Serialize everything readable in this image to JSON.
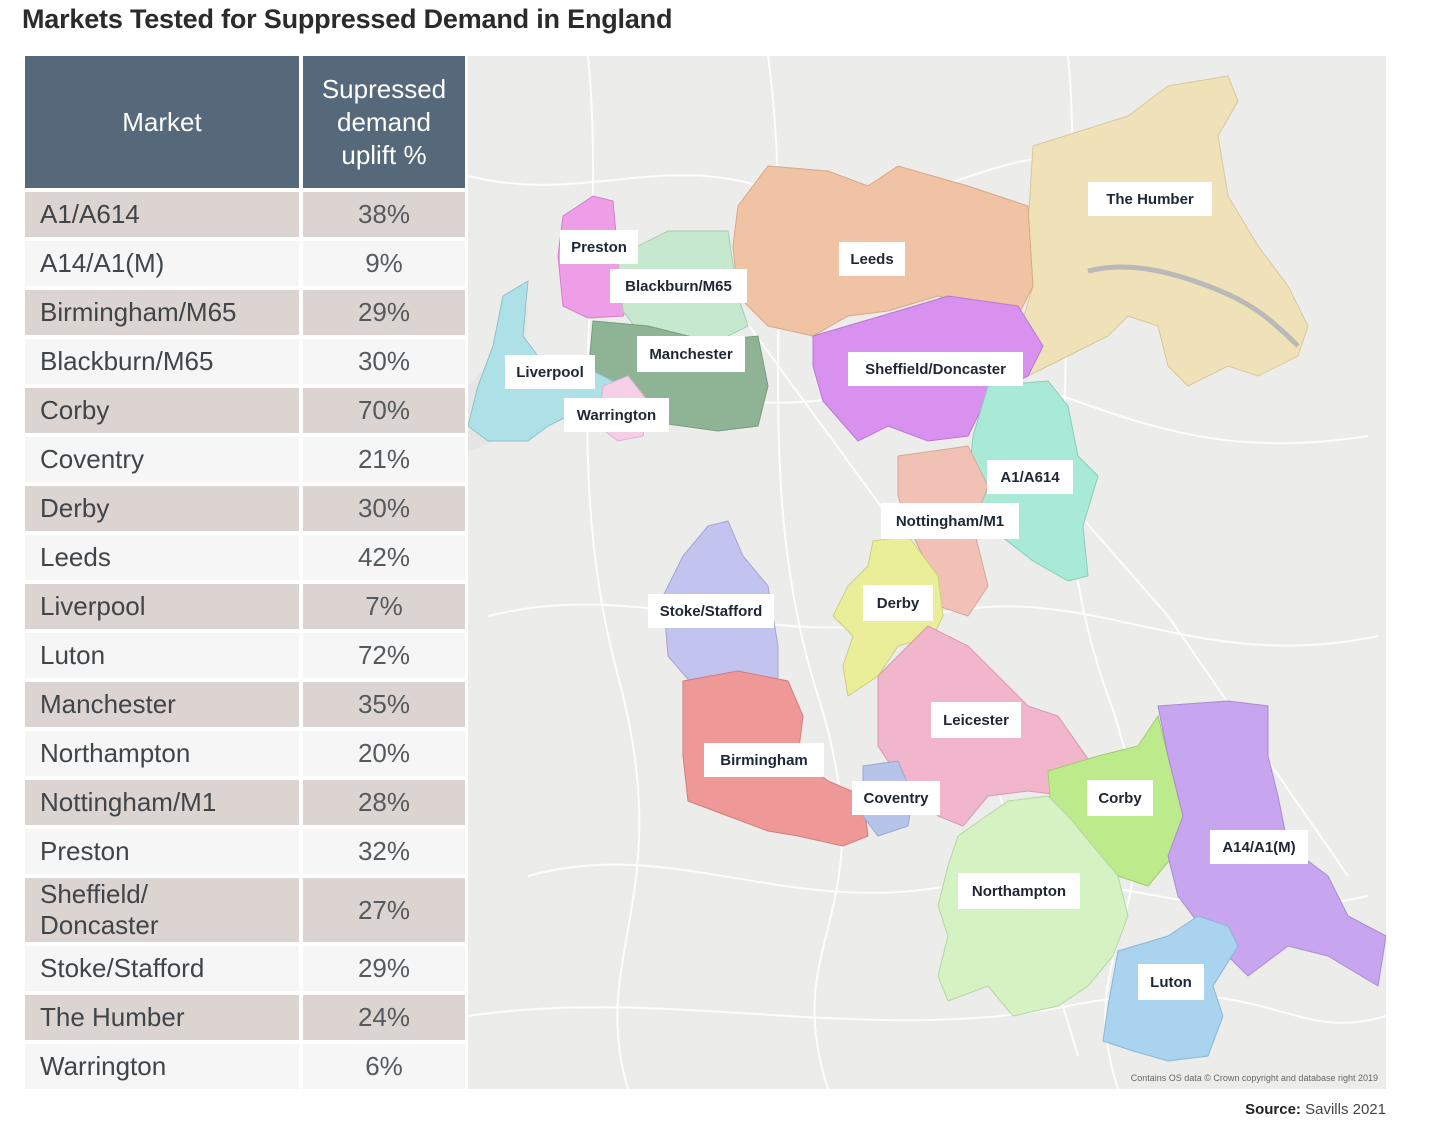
{
  "title": "Markets Tested for Suppressed Demand in England",
  "table": {
    "header_market": "Market",
    "header_uplift": "Supressed\ndemand\nuplift %",
    "rows": [
      {
        "market": "A1/A614",
        "uplift": "38%"
      },
      {
        "market": "A14/A1(M)",
        "uplift": "9%"
      },
      {
        "market": "Birmingham/M65",
        "uplift": "29%"
      },
      {
        "market": "Blackburn/M65",
        "uplift": "30%"
      },
      {
        "market": "Corby",
        "uplift": "70%"
      },
      {
        "market": "Coventry",
        "uplift": "21%"
      },
      {
        "market": "Derby",
        "uplift": "30%"
      },
      {
        "market": "Leeds",
        "uplift": "42%"
      },
      {
        "market": "Liverpool",
        "uplift": "7%"
      },
      {
        "market": "Luton",
        "uplift": "72%"
      },
      {
        "market": "Manchester",
        "uplift": "35%"
      },
      {
        "market": "Northampton",
        "uplift": "20%"
      },
      {
        "market": "Nottingham/M1",
        "uplift": "28%"
      },
      {
        "market": "Preston",
        "uplift": "32%"
      },
      {
        "market": "Sheffield/\nDoncaster",
        "uplift": "27%"
      },
      {
        "market": "Stoke/Stafford",
        "uplift": "29%"
      },
      {
        "market": "The Humber",
        "uplift": "24%"
      },
      {
        "market": "Warrington",
        "uplift": "6%"
      }
    ]
  },
  "map": {
    "labels": {
      "the_humber": "The Humber",
      "preston": "Preston",
      "leeds": "Leeds",
      "blackburn": "Blackburn/M65",
      "manchester": "Manchester",
      "liverpool": "Liverpool",
      "sheffield": "Sheffield/Doncaster",
      "warrington": "Warrington",
      "a1_a614": "A1/A614",
      "nottingham": "Nottingham/M1",
      "stoke": "Stoke/Stafford",
      "derby": "Derby",
      "leicester": "Leicester",
      "birmingham": "Birmingham",
      "coventry": "Coventry",
      "corby": "Corby",
      "a14": "A14/A1(M)",
      "northampton": "Northampton",
      "luton": "Luton"
    },
    "region_colors": {
      "humber": "#efe2b8",
      "leeds": "#efc3a3",
      "preston": "#ee9ee6",
      "blackburn": "#c6e8cf",
      "manchester": "#8fb495",
      "liverpool": "#aee0e8",
      "warrington": "#f5cfe5",
      "sheffield": "#d891ee",
      "a1_a614": "#a9ead6",
      "nottingham": "#f0c1b4",
      "stoke": "#c3c3ef",
      "derby": "#eaee98",
      "leicester": "#f2b6cc",
      "birmingham": "#ee9898",
      "coventry": "#b7c4ea",
      "corby": "#bdea8a",
      "a14": "#c7a6ef",
      "northampton": "#d4f2c2",
      "luton": "#a9d3ee"
    },
    "credit": "Contains OS data © Crown copyright and database right 2019"
  },
  "source": {
    "label": "Source:",
    "text": "Savills 2021"
  }
}
